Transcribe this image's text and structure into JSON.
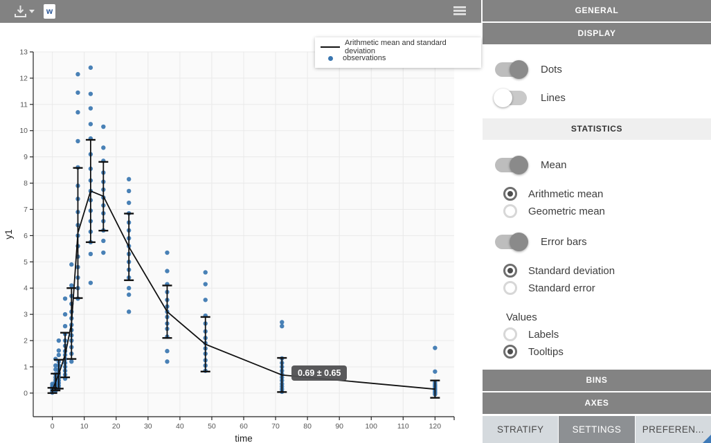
{
  "toolbar": {
    "icons": [
      "download-icon",
      "caret-down-icon",
      "word-export-icon",
      "menu-icon"
    ]
  },
  "legend": {
    "items": [
      {
        "label": "Arithmetic mean and standard deviation",
        "marker": "line",
        "color": "#111111"
      },
      {
        "label": "observations",
        "marker": "dot",
        "color": "#3a76b0"
      }
    ]
  },
  "chart_data": {
    "type": "scatter",
    "title": "",
    "xlabel": "time",
    "ylabel": "y1",
    "xlim": [
      -6,
      126
    ],
    "ylim": [
      -0.9,
      13
    ],
    "x_ticks": [
      0,
      10,
      20,
      30,
      40,
      50,
      60,
      70,
      80,
      90,
      100,
      110,
      120
    ],
    "y_ticks": [
      0,
      1,
      2,
      3,
      4,
      5,
      6,
      7,
      8,
      9,
      10,
      11,
      12,
      13
    ],
    "grid": true,
    "legend_position": "top-right",
    "colors": {
      "dots": "#3a76b0",
      "mean_line": "#111111",
      "plot_bg": "#fafafa",
      "gridline": "#e9e9e9"
    },
    "series": [
      {
        "name": "Arithmetic mean and standard deviation",
        "type": "line+errorbar",
        "x": [
          0,
          1,
          2,
          4,
          6,
          8,
          12,
          16,
          24,
          36,
          48,
          72,
          120
        ],
        "mean": [
          0.1,
          0.42,
          0.72,
          1.45,
          2.65,
          6.1,
          7.7,
          7.5,
          5.57,
          3.1,
          1.86,
          0.69,
          0.15
        ],
        "sd": [
          0.1,
          0.32,
          0.55,
          0.85,
          1.35,
          2.48,
          1.95,
          1.31,
          1.27,
          1.0,
          1.04,
          0.65,
          0.33
        ]
      },
      {
        "name": "observations",
        "type": "scatter",
        "points": [
          [
            0,
            0.02
          ],
          [
            0,
            0.04
          ],
          [
            0,
            0.06
          ],
          [
            0,
            0.08
          ],
          [
            0,
            0.1
          ],
          [
            0,
            0.12
          ],
          [
            0,
            0.15
          ],
          [
            0,
            0.18
          ],
          [
            0,
            0.22
          ],
          [
            0,
            0.28
          ],
          [
            0,
            0.35
          ],
          [
            1,
            0.08
          ],
          [
            1,
            0.12
          ],
          [
            1,
            0.18
          ],
          [
            1,
            0.25
          ],
          [
            1,
            0.3
          ],
          [
            1,
            0.36
          ],
          [
            1,
            0.42
          ],
          [
            1,
            0.5
          ],
          [
            1,
            0.6
          ],
          [
            1,
            0.72
          ],
          [
            1,
            0.9
          ],
          [
            1,
            1.05
          ],
          [
            1,
            1.3
          ],
          [
            2,
            0.18
          ],
          [
            2,
            0.28
          ],
          [
            2,
            0.38
          ],
          [
            2,
            0.48
          ],
          [
            2,
            0.58
          ],
          [
            2,
            0.68
          ],
          [
            2,
            0.78
          ],
          [
            2,
            0.9
          ],
          [
            2,
            1.05
          ],
          [
            2,
            1.2
          ],
          [
            2,
            1.45
          ],
          [
            2,
            1.62
          ],
          [
            2,
            2.0
          ],
          [
            4,
            0.55
          ],
          [
            4,
            0.7
          ],
          [
            4,
            0.85
          ],
          [
            4,
            1.0
          ],
          [
            4,
            1.15
          ],
          [
            4,
            1.3
          ],
          [
            4,
            1.45
          ],
          [
            4,
            1.6
          ],
          [
            4,
            1.8
          ],
          [
            4,
            2.0
          ],
          [
            4,
            2.25
          ],
          [
            4,
            2.55
          ],
          [
            4,
            3.0
          ],
          [
            4,
            3.6
          ],
          [
            6,
            1.2
          ],
          [
            6,
            1.5
          ],
          [
            6,
            1.75
          ],
          [
            6,
            2.0
          ],
          [
            6,
            2.2
          ],
          [
            6,
            2.4
          ],
          [
            6,
            2.6
          ],
          [
            6,
            2.85
          ],
          [
            6,
            3.1
          ],
          [
            6,
            3.4
          ],
          [
            6,
            3.7
          ],
          [
            6,
            4.1
          ],
          [
            6,
            4.9
          ],
          [
            8,
            3.6
          ],
          [
            8,
            4.0
          ],
          [
            8,
            4.4
          ],
          [
            8,
            4.8
          ],
          [
            8,
            5.2
          ],
          [
            8,
            5.6
          ],
          [
            8,
            6.0
          ],
          [
            8,
            6.4
          ],
          [
            8,
            6.9
          ],
          [
            8,
            7.4
          ],
          [
            8,
            7.9
          ],
          [
            8,
            8.6
          ],
          [
            8,
            9.6
          ],
          [
            8,
            10.7
          ],
          [
            8,
            11.45
          ],
          [
            8,
            12.15
          ],
          [
            12,
            4.2
          ],
          [
            12,
            5.3
          ],
          [
            12,
            5.75
          ],
          [
            12,
            6.15
          ],
          [
            12,
            6.55
          ],
          [
            12,
            6.95
          ],
          [
            12,
            7.35
          ],
          [
            12,
            7.7
          ],
          [
            12,
            8.1
          ],
          [
            12,
            8.55
          ],
          [
            12,
            9.1
          ],
          [
            12,
            9.7
          ],
          [
            12,
            10.25
          ],
          [
            12,
            10.85
          ],
          [
            12,
            11.4
          ],
          [
            12,
            12.4
          ],
          [
            16,
            5.35
          ],
          [
            16,
            5.8
          ],
          [
            16,
            6.2
          ],
          [
            16,
            6.55
          ],
          [
            16,
            6.85
          ],
          [
            16,
            7.15
          ],
          [
            16,
            7.45
          ],
          [
            16,
            7.75
          ],
          [
            16,
            8.05
          ],
          [
            16,
            8.4
          ],
          [
            16,
            8.85
          ],
          [
            16,
            9.35
          ],
          [
            16,
            10.15
          ],
          [
            24,
            3.1
          ],
          [
            24,
            3.75
          ],
          [
            24,
            4.0
          ],
          [
            24,
            4.4
          ],
          [
            24,
            4.7
          ],
          [
            24,
            5.0
          ],
          [
            24,
            5.3
          ],
          [
            24,
            5.6
          ],
          [
            24,
            5.9
          ],
          [
            24,
            6.2
          ],
          [
            24,
            6.5
          ],
          [
            24,
            6.85
          ],
          [
            24,
            7.25
          ],
          [
            24,
            7.7
          ],
          [
            24,
            8.15
          ],
          [
            36,
            1.2
          ],
          [
            36,
            1.6
          ],
          [
            36,
            2.15
          ],
          [
            36,
            2.45
          ],
          [
            36,
            2.65
          ],
          [
            36,
            2.9
          ],
          [
            36,
            3.1
          ],
          [
            36,
            3.3
          ],
          [
            36,
            3.55
          ],
          [
            36,
            3.85
          ],
          [
            36,
            4.15
          ],
          [
            36,
            4.65
          ],
          [
            36,
            5.35
          ],
          [
            48,
            0.85
          ],
          [
            48,
            1.05
          ],
          [
            48,
            1.25
          ],
          [
            48,
            1.5
          ],
          [
            48,
            1.7
          ],
          [
            48,
            1.9
          ],
          [
            48,
            2.1
          ],
          [
            48,
            2.35
          ],
          [
            48,
            2.65
          ],
          [
            48,
            2.95
          ],
          [
            48,
            3.55
          ],
          [
            48,
            4.15
          ],
          [
            48,
            4.6
          ],
          [
            72,
            0.05
          ],
          [
            72,
            0.15
          ],
          [
            72,
            0.25
          ],
          [
            72,
            0.35
          ],
          [
            72,
            0.48
          ],
          [
            72,
            0.6
          ],
          [
            72,
            0.72
          ],
          [
            72,
            0.85
          ],
          [
            72,
            1.0
          ],
          [
            72,
            1.15
          ],
          [
            72,
            1.32
          ],
          [
            72,
            2.55
          ],
          [
            72,
            2.7
          ],
          [
            120,
            -0.05
          ],
          [
            120,
            0.02
          ],
          [
            120,
            0.08
          ],
          [
            120,
            0.14
          ],
          [
            120,
            0.2
          ],
          [
            120,
            0.26
          ],
          [
            120,
            0.32
          ],
          [
            120,
            0.4
          ],
          [
            120,
            0.82
          ],
          [
            120,
            1.72
          ]
        ]
      }
    ],
    "tooltip": {
      "text": "0.69 ± 0.65",
      "time": 72,
      "value": 0.69
    }
  },
  "panel": {
    "headers": {
      "general": "GENERAL",
      "display": "DISPLAY",
      "statistics": "STATISTICS",
      "bins": "BINS",
      "axes": "AXES"
    },
    "toggles": {
      "dots": {
        "label": "Dots",
        "on": true
      },
      "lines": {
        "label": "Lines",
        "on": false
      },
      "mean": {
        "label": "Mean",
        "on": true
      },
      "error_bars": {
        "label": "Error bars",
        "on": true
      }
    },
    "radios": {
      "arithmetic_mean": {
        "label": "Arithmetic mean",
        "checked": true
      },
      "geometric_mean": {
        "label": "Geometric mean",
        "checked": false
      },
      "standard_deviation": {
        "label": "Standard deviation",
        "checked": true
      },
      "standard_error": {
        "label": "Standard error",
        "checked": false
      },
      "labels": {
        "label": "Labels",
        "checked": false
      },
      "tooltips": {
        "label": "Tooltips",
        "checked": true
      }
    },
    "values_label": "Values",
    "tabs": [
      {
        "label": "STRATIFY",
        "active": false
      },
      {
        "label": "SETTINGS",
        "active": true
      },
      {
        "label": "PREFEREN...",
        "active": false
      }
    ]
  }
}
